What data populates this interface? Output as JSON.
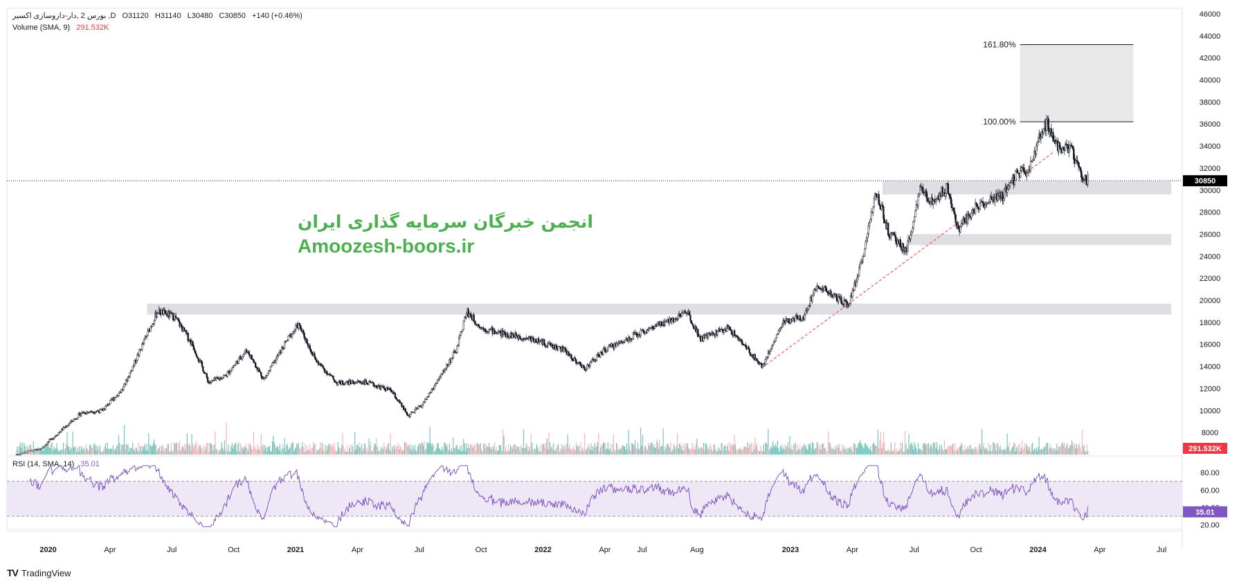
{
  "header": {
    "symbol_line": "بورس 2 ,دار-داروسازی اکسیر ,D",
    "open": "O31120",
    "high": "H31140",
    "low": "L30480",
    "close": "C30850",
    "change": "+140 (+0.46%)",
    "volume_label": "Volume (SMA, 9)",
    "volume_value": "291.532K"
  },
  "rsi": {
    "label": "RSI (14, SMA, 14)",
    "value": "35.01"
  },
  "watermark": {
    "line1": "انجمن خبرگان سرمایه گذاری ایران",
    "line2": "Amoozesh-boors.ir"
  },
  "brand": {
    "logo": "TV",
    "name": "TradingView"
  },
  "chart_data": {
    "type": "candlestick",
    "price_axis": {
      "ticks": [
        "46000",
        "44000",
        "42000",
        "40000",
        "38000",
        "36000",
        "34000",
        "32000",
        "30000",
        "28000",
        "26000",
        "24000",
        "22000",
        "20000",
        "18000",
        "16000",
        "14000",
        "12000",
        "10000",
        "8000"
      ],
      "ylim": [
        6000,
        46500
      ]
    },
    "rsi_axis": {
      "ticks": [
        "80.00",
        "60.00",
        "40.00",
        "20.00"
      ],
      "ylim": [
        15,
        92
      ],
      "bands": [
        30,
        70
      ]
    },
    "x_labels": [
      "2020",
      "Apr",
      "Jul",
      "Oct",
      "2021",
      "Apr",
      "Jul",
      "Oct",
      "2022",
      "Apr",
      "Jul",
      "Aug",
      "2023",
      "Apr",
      "Jul",
      "Oct",
      "2024",
      "Apr",
      "Jul"
    ],
    "time_range": [
      "2019-11",
      "2024-08"
    ],
    "last_price": 30850,
    "last_price_label": "30850",
    "volume_label": "291.532K",
    "rsi_last_label": "35.01",
    "price_path": [
      [
        "2019-11-15",
        6000
      ],
      [
        "2019-12-20",
        6500
      ],
      [
        "2020-01-20",
        8200
      ],
      [
        "2020-02-20",
        9800
      ],
      [
        "2020-03-20",
        10000
      ],
      [
        "2020-04-20",
        12000
      ],
      [
        "2020-05-15",
        15500
      ],
      [
        "2020-06-10",
        19000
      ],
      [
        "2020-07-05",
        18500
      ],
      [
        "2020-08-01",
        16000
      ],
      [
        "2020-08-25",
        12500
      ],
      [
        "2020-09-20",
        13200
      ],
      [
        "2020-10-20",
        15500
      ],
      [
        "2020-11-15",
        12800
      ],
      [
        "2020-12-20",
        16500
      ],
      [
        "2021-01-05",
        17800
      ],
      [
        "2021-02-01",
        14500
      ],
      [
        "2021-03-01",
        12500
      ],
      [
        "2021-04-10",
        12600
      ],
      [
        "2021-05-20",
        11800
      ],
      [
        "2021-06-15",
        9500
      ],
      [
        "2021-07-05",
        10500
      ],
      [
        "2021-08-01",
        13000
      ],
      [
        "2021-08-25",
        15500
      ],
      [
        "2021-09-10",
        19000
      ],
      [
        "2021-10-01",
        17500
      ],
      [
        "2021-11-01",
        17000
      ],
      [
        "2021-12-15",
        16500
      ],
      [
        "2022-02-01",
        15500
      ],
      [
        "2022-03-01",
        13800
      ],
      [
        "2022-04-01",
        15500
      ],
      [
        "2022-05-20",
        17000
      ],
      [
        "2022-07-01",
        18000
      ],
      [
        "2022-08-01",
        19000
      ],
      [
        "2022-08-20",
        16500
      ],
      [
        "2022-10-01",
        17500
      ],
      [
        "2022-11-20",
        14000
      ],
      [
        "2022-12-20",
        18000
      ],
      [
        "2023-01-20",
        18500
      ],
      [
        "2023-02-10",
        21500
      ],
      [
        "2023-03-01",
        20500
      ],
      [
        "2023-03-25",
        19500
      ],
      [
        "2023-04-15",
        23500
      ],
      [
        "2023-05-05",
        30000
      ],
      [
        "2023-05-25",
        26000
      ],
      [
        "2023-06-20",
        24500
      ],
      [
        "2023-07-10",
        30000
      ],
      [
        "2023-07-25",
        29000
      ],
      [
        "2023-08-20",
        30200
      ],
      [
        "2023-09-05",
        26500
      ],
      [
        "2023-10-01",
        28500
      ],
      [
        "2023-11-10",
        29500
      ],
      [
        "2023-12-01",
        31500
      ],
      [
        "2023-12-20",
        32000
      ],
      [
        "2024-01-05",
        35000
      ],
      [
        "2024-01-15",
        36000
      ],
      [
        "2024-02-01",
        34000
      ],
      [
        "2024-02-20",
        33500
      ],
      [
        "2024-03-05",
        31500
      ],
      [
        "2024-03-15",
        30850
      ]
    ],
    "zones": [
      {
        "from_date": "2020-05-25",
        "to_date": "2024-07-15",
        "price_from": 18700,
        "price_to": 19700
      },
      {
        "from_date": "2023-05-15",
        "to_date": "2024-07-15",
        "price_from": 29600,
        "price_to": 30800
      },
      {
        "from_date": "2023-06-20",
        "to_date": "2024-07-15",
        "price_from": 25000,
        "price_to": 26000
      }
    ],
    "fib": {
      "from_date": "2023-12-05",
      "to_date": "2024-05-20",
      "level_100": 36200,
      "level_161": 43200,
      "label_100": "100.00%",
      "label_161": "161.80%"
    },
    "trendline": {
      "from_date": "2022-11-20",
      "from_price": 13900,
      "to_date": "2024-01-25",
      "to_price": 33500
    },
    "colors": {
      "candle": "#131722",
      "volume_up": "#4db6ac",
      "volume_down": "#f4a4a8",
      "rsi_line": "#7e57c2",
      "rsi_band": "#ede7f6",
      "zone": "#dedee3",
      "trendline": "#f23645",
      "fib_box": "#e8e8e8",
      "price_tag": "#000000",
      "volume_tag": "#f23645",
      "rsi_tag": "#7e57c2"
    }
  }
}
